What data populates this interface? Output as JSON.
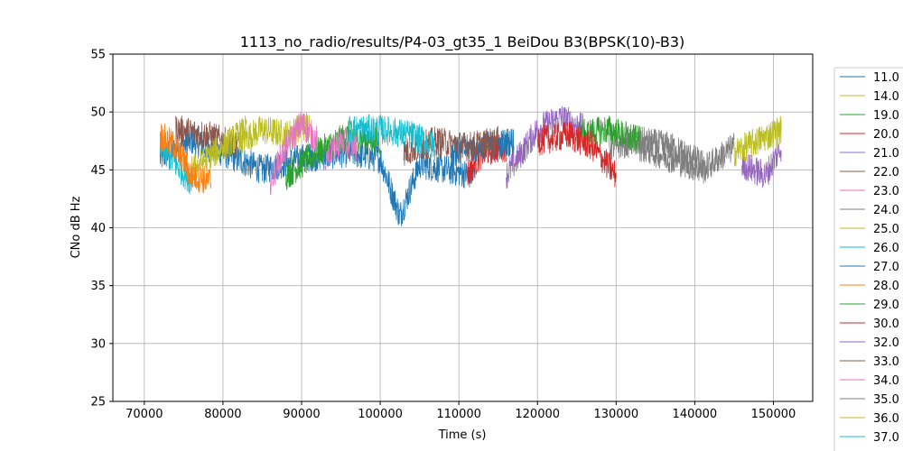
{
  "chart_data": {
    "type": "line",
    "title": "1113_no_radio/results/P4-03_gt35_1 BeiDou B3(BPSK(10)-B3)",
    "xlabel": "Time (s)",
    "ylabel": "CNo dB Hz",
    "xlim": [
      66000,
      155000
    ],
    "ylim": [
      25,
      55
    ],
    "xticks": [
      70000,
      80000,
      90000,
      100000,
      110000,
      120000,
      130000,
      140000,
      150000
    ],
    "xtick_labels": [
      "70000",
      "80000",
      "90000",
      "100000",
      "110000",
      "120000",
      "130000",
      "140000",
      "150000"
    ],
    "yticks": [
      25,
      30,
      35,
      40,
      45,
      50,
      55
    ],
    "ytick_labels": [
      "25",
      "30",
      "35",
      "40",
      "45",
      "50",
      "55"
    ],
    "grid": true,
    "legend_placement": "right, outside plot",
    "series": [
      {
        "name": "11.0",
        "color": "#1f77b4",
        "x": [
          72000,
          76000,
          80000,
          85000,
          90000,
          96000,
          100000,
          102500,
          105000,
          112000
        ],
        "y": [
          46.0,
          47.5,
          46.5,
          45.0,
          46.0,
          46.5,
          46.0,
          41.0,
          45.5,
          44.5
        ]
      },
      {
        "name": "14.0",
        "color": "#bcbd22",
        "x": [
          82000,
          85000,
          88000,
          91000
        ],
        "y": [
          47.5,
          48.5,
          48.0,
          49.0
        ]
      },
      {
        "name": "19.0",
        "color": "#2ca02c",
        "x": [
          88000,
          92000,
          96000,
          100000
        ],
        "y": [
          44.5,
          46.5,
          48.0,
          47.5
        ]
      },
      {
        "name": "20.0",
        "color": "#d62728",
        "x": [
          111000,
          113000,
          116000
        ],
        "y": [
          44.5,
          46.5,
          47.0
        ]
      },
      {
        "name": "21.0",
        "color": "#9467bd",
        "x": [
          116000,
          120000,
          123000,
          126000
        ],
        "y": [
          44.5,
          48.5,
          49.5,
          48.5
        ]
      },
      {
        "name": "22.0",
        "color": "#8c564b",
        "x": [
          74000,
          78000,
          82000
        ],
        "y": [
          48.5,
          48.0,
          47.0
        ]
      },
      {
        "name": "23.0",
        "color": "#e377c2",
        "x": [
          86000,
          88000,
          90000,
          92000
        ],
        "y": [
          44.0,
          47.0,
          49.0,
          47.5
        ]
      },
      {
        "name": "24.0",
        "color": "#7f7f7f",
        "x": [
          129000,
          133000,
          137000,
          141000
        ],
        "y": [
          47.0,
          47.5,
          47.0,
          45.5
        ]
      },
      {
        "name": "25.0",
        "color": "#bcbd22",
        "x": [
          76000,
          80000,
          83000
        ],
        "y": [
          45.0,
          47.0,
          48.5
        ]
      },
      {
        "name": "26.0",
        "color": "#17becf",
        "x": [
          72000,
          74000,
          76000
        ],
        "y": [
          47.0,
          45.5,
          44.0
        ]
      },
      {
        "name": "27.0",
        "color": "#1f77b4",
        "x": [
          109000,
          113000,
          117000
        ],
        "y": [
          46.5,
          47.0,
          47.5
        ]
      },
      {
        "name": "28.0",
        "color": "#ff7f0e",
        "x": [
          72000,
          74000,
          76000,
          78500
        ],
        "y": [
          48.0,
          47.0,
          44.5,
          44.0
        ]
      },
      {
        "name": "29.0",
        "color": "#2ca02c",
        "x": [
          125000,
          129000,
          133000
        ],
        "y": [
          48.0,
          48.5,
          47.5
        ]
      },
      {
        "name": "30.0",
        "color": "#d62728",
        "x": [
          120000,
          124000,
          127000,
          130000
        ],
        "y": [
          47.5,
          48.0,
          47.0,
          44.5
        ]
      },
      {
        "name": "32.0",
        "color": "#9467bd",
        "x": [
          146000,
          149000,
          151000
        ],
        "y": [
          45.5,
          44.5,
          47.0
        ]
      },
      {
        "name": "33.0",
        "color": "#8c564b",
        "x": [
          103000,
          107000,
          111000,
          115000
        ],
        "y": [
          46.5,
          47.5,
          47.0,
          47.5
        ]
      },
      {
        "name": "34.0",
        "color": "#e377c2",
        "x": [
          93000,
          95000,
          97000
        ],
        "y": [
          46.0,
          47.5,
          47.0
        ]
      },
      {
        "name": "35.0",
        "color": "#7f7f7f",
        "x": [
          133000,
          137000,
          141000,
          145000
        ],
        "y": [
          47.0,
          46.0,
          45.0,
          47.0
        ]
      },
      {
        "name": "36.0",
        "color": "#bcbd22",
        "x": [
          145000,
          148000,
          151000
        ],
        "y": [
          46.5,
          47.5,
          48.5
        ]
      },
      {
        "name": "37.0",
        "color": "#17becf",
        "x": [
          96000,
          100000,
          104000,
          107000
        ],
        "y": [
          48.5,
          48.5,
          48.0,
          47.0
        ]
      }
    ]
  }
}
